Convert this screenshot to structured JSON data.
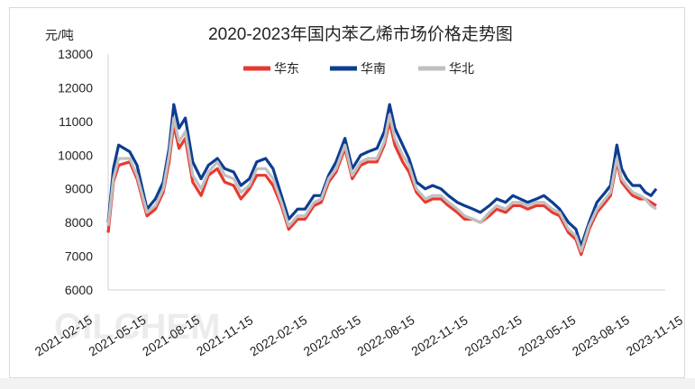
{
  "chart_data": {
    "type": "line",
    "title": "2020-2023年国内苯乙烯市场价格走势图",
    "ylabel": "元/吨",
    "xlabel": "",
    "ylim": [
      6000,
      13000
    ],
    "yticks": [
      "13000",
      "12000",
      "11000",
      "10000",
      "9000",
      "8000",
      "7000",
      "6000"
    ],
    "xticks": [
      "2021-02-15",
      "2021-05-15",
      "2021-08-15",
      "2021-11-15",
      "2022-02-15",
      "2022-05-15",
      "2022-08-15",
      "2022-11-15",
      "2023-02-15",
      "2023-05-15",
      "2023-08-15",
      "2023-11-15"
    ],
    "grid": false,
    "legend": "top",
    "watermark": "OILCHEM",
    "series": [
      {
        "name": "华东",
        "color": "#e8392f",
        "points": [
          [
            "2021-01-05",
            7700
          ],
          [
            "2021-01-15",
            9200
          ],
          [
            "2021-01-25",
            9700
          ],
          [
            "2021-02-15",
            9800
          ],
          [
            "2021-03-01",
            9300
          ],
          [
            "2021-03-20",
            8200
          ],
          [
            "2021-04-05",
            8400
          ],
          [
            "2021-04-20",
            8900
          ],
          [
            "2021-05-01",
            9800
          ],
          [
            "2021-05-10",
            10900
          ],
          [
            "2021-05-20",
            10200
          ],
          [
            "2021-06-01",
            10500
          ],
          [
            "2021-06-15",
            9200
          ],
          [
            "2021-07-01",
            8800
          ],
          [
            "2021-07-15",
            9400
          ],
          [
            "2021-08-01",
            9600
          ],
          [
            "2021-08-15",
            9200
          ],
          [
            "2021-09-01",
            9100
          ],
          [
            "2021-09-15",
            8700
          ],
          [
            "2021-10-01",
            9000
          ],
          [
            "2021-10-15",
            9400
          ],
          [
            "2021-11-01",
            9400
          ],
          [
            "2021-11-15",
            9100
          ],
          [
            "2021-12-01",
            8500
          ],
          [
            "2021-12-15",
            7800
          ],
          [
            "2022-01-01",
            8100
          ],
          [
            "2022-01-15",
            8100
          ],
          [
            "2022-02-01",
            8500
          ],
          [
            "2022-02-15",
            8600
          ],
          [
            "2022-03-01",
            9200
          ],
          [
            "2022-03-15",
            9500
          ],
          [
            "2022-04-01",
            10200
          ],
          [
            "2022-04-15",
            9300
          ],
          [
            "2022-05-01",
            9700
          ],
          [
            "2022-05-15",
            9800
          ],
          [
            "2022-06-01",
            9800
          ],
          [
            "2022-06-15",
            10300
          ],
          [
            "2022-06-25",
            11000
          ],
          [
            "2022-07-05",
            10300
          ],
          [
            "2022-07-20",
            9800
          ],
          [
            "2022-08-01",
            9500
          ],
          [
            "2022-08-15",
            8900
          ],
          [
            "2022-09-01",
            8600
          ],
          [
            "2022-09-15",
            8700
          ],
          [
            "2022-10-01",
            8700
          ],
          [
            "2022-10-15",
            8500
          ],
          [
            "2022-11-01",
            8300
          ],
          [
            "2022-11-15",
            8100
          ],
          [
            "2022-12-01",
            8100
          ],
          [
            "2022-12-15",
            8000
          ],
          [
            "2023-01-01",
            8200
          ],
          [
            "2023-01-15",
            8400
          ],
          [
            "2023-02-01",
            8300
          ],
          [
            "2023-02-15",
            8500
          ],
          [
            "2023-03-01",
            8500
          ],
          [
            "2023-03-15",
            8400
          ],
          [
            "2023-04-01",
            8500
          ],
          [
            "2023-04-15",
            8500
          ],
          [
            "2023-05-01",
            8300
          ],
          [
            "2023-05-15",
            8200
          ],
          [
            "2023-06-01",
            7700
          ],
          [
            "2023-06-15",
            7500
          ],
          [
            "2023-06-25",
            7050
          ],
          [
            "2023-07-10",
            7800
          ],
          [
            "2023-07-25",
            8300
          ],
          [
            "2023-08-10",
            8600
          ],
          [
            "2023-08-20",
            8800
          ],
          [
            "2023-09-01",
            9800
          ],
          [
            "2023-09-10",
            9200
          ],
          [
            "2023-09-20",
            9000
          ],
          [
            "2023-10-01",
            8800
          ],
          [
            "2023-10-15",
            8700
          ],
          [
            "2023-10-25",
            8700
          ],
          [
            "2023-11-05",
            8600
          ],
          [
            "2023-11-15",
            8500
          ]
        ]
      },
      {
        "name": "华南",
        "color": "#0d3d91",
        "points": [
          [
            "2021-01-05",
            8000
          ],
          [
            "2021-01-15",
            9600
          ],
          [
            "2021-01-25",
            10300
          ],
          [
            "2021-02-15",
            10100
          ],
          [
            "2021-03-01",
            9700
          ],
          [
            "2021-03-20",
            8400
          ],
          [
            "2021-04-05",
            8700
          ],
          [
            "2021-04-20",
            9200
          ],
          [
            "2021-05-01",
            10200
          ],
          [
            "2021-05-10",
            11500
          ],
          [
            "2021-05-20",
            10800
          ],
          [
            "2021-06-01",
            11100
          ],
          [
            "2021-06-15",
            9800
          ],
          [
            "2021-07-01",
            9300
          ],
          [
            "2021-07-15",
            9700
          ],
          [
            "2021-08-01",
            9900
          ],
          [
            "2021-08-15",
            9600
          ],
          [
            "2021-09-01",
            9500
          ],
          [
            "2021-09-15",
            9100
          ],
          [
            "2021-10-01",
            9300
          ],
          [
            "2021-10-15",
            9800
          ],
          [
            "2021-11-01",
            9900
          ],
          [
            "2021-11-15",
            9600
          ],
          [
            "2021-12-01",
            8800
          ],
          [
            "2021-12-15",
            8100
          ],
          [
            "2022-01-01",
            8400
          ],
          [
            "2022-01-15",
            8400
          ],
          [
            "2022-02-01",
            8800
          ],
          [
            "2022-02-15",
            8800
          ],
          [
            "2022-03-01",
            9400
          ],
          [
            "2022-03-15",
            9800
          ],
          [
            "2022-04-01",
            10500
          ],
          [
            "2022-04-15",
            9600
          ],
          [
            "2022-05-01",
            10000
          ],
          [
            "2022-05-15",
            10100
          ],
          [
            "2022-06-01",
            10200
          ],
          [
            "2022-06-15",
            10700
          ],
          [
            "2022-06-25",
            11500
          ],
          [
            "2022-07-05",
            10800
          ],
          [
            "2022-07-20",
            10300
          ],
          [
            "2022-08-01",
            9900
          ],
          [
            "2022-08-15",
            9200
          ],
          [
            "2022-09-01",
            9000
          ],
          [
            "2022-09-15",
            9100
          ],
          [
            "2022-10-01",
            9000
          ],
          [
            "2022-10-15",
            8800
          ],
          [
            "2022-11-01",
            8600
          ],
          [
            "2022-11-15",
            8500
          ],
          [
            "2022-12-01",
            8400
          ],
          [
            "2022-12-15",
            8300
          ],
          [
            "2023-01-01",
            8500
          ],
          [
            "2023-01-15",
            8700
          ],
          [
            "2023-02-01",
            8600
          ],
          [
            "2023-02-15",
            8800
          ],
          [
            "2023-03-01",
            8700
          ],
          [
            "2023-03-15",
            8600
          ],
          [
            "2023-04-01",
            8700
          ],
          [
            "2023-04-15",
            8800
          ],
          [
            "2023-05-01",
            8600
          ],
          [
            "2023-05-15",
            8400
          ],
          [
            "2023-06-01",
            8000
          ],
          [
            "2023-06-15",
            7800
          ],
          [
            "2023-06-25",
            7300
          ],
          [
            "2023-07-10",
            8000
          ],
          [
            "2023-07-25",
            8600
          ],
          [
            "2023-08-10",
            8900
          ],
          [
            "2023-08-20",
            9100
          ],
          [
            "2023-09-01",
            10300
          ],
          [
            "2023-09-10",
            9600
          ],
          [
            "2023-09-20",
            9300
          ],
          [
            "2023-10-01",
            9100
          ],
          [
            "2023-10-15",
            9100
          ],
          [
            "2023-10-25",
            8900
          ],
          [
            "2023-11-05",
            8800
          ],
          [
            "2023-11-15",
            9000
          ]
        ]
      },
      {
        "name": "华北",
        "color": "#c0c0c0",
        "points": [
          [
            "2021-01-05",
            7900
          ],
          [
            "2021-01-15",
            9300
          ],
          [
            "2021-01-25",
            9900
          ],
          [
            "2021-02-15",
            9900
          ],
          [
            "2021-03-01",
            9400
          ],
          [
            "2021-03-20",
            8300
          ],
          [
            "2021-04-05",
            8500
          ],
          [
            "2021-04-20",
            9000
          ],
          [
            "2021-05-01",
            10000
          ],
          [
            "2021-05-10",
            11100
          ],
          [
            "2021-05-20",
            10400
          ],
          [
            "2021-06-01",
            10700
          ],
          [
            "2021-06-15",
            9400
          ],
          [
            "2021-07-01",
            9000
          ],
          [
            "2021-07-15",
            9500
          ],
          [
            "2021-08-01",
            9800
          ],
          [
            "2021-08-15",
            9400
          ],
          [
            "2021-09-01",
            9300
          ],
          [
            "2021-09-15",
            8900
          ],
          [
            "2021-10-01",
            9100
          ],
          [
            "2021-10-15",
            9600
          ],
          [
            "2021-11-01",
            9600
          ],
          [
            "2021-11-15",
            9300
          ],
          [
            "2021-12-01",
            8600
          ],
          [
            "2021-12-15",
            7900
          ],
          [
            "2022-01-01",
            8200
          ],
          [
            "2022-01-15",
            8200
          ],
          [
            "2022-02-01",
            8600
          ],
          [
            "2022-02-15",
            8700
          ],
          [
            "2022-03-01",
            9300
          ],
          [
            "2022-03-15",
            9600
          ],
          [
            "2022-04-01",
            10300
          ],
          [
            "2022-04-15",
            9400
          ],
          [
            "2022-05-01",
            9800
          ],
          [
            "2022-05-15",
            9900
          ],
          [
            "2022-06-01",
            9900
          ],
          [
            "2022-06-15",
            10400
          ],
          [
            "2022-06-25",
            11200
          ],
          [
            "2022-07-05",
            10500
          ],
          [
            "2022-07-20",
            10000
          ],
          [
            "2022-08-01",
            9700
          ],
          [
            "2022-08-15",
            9000
          ],
          [
            "2022-09-01",
            8700
          ],
          [
            "2022-09-15",
            8800
          ],
          [
            "2022-10-01",
            8800
          ],
          [
            "2022-10-15",
            8600
          ],
          [
            "2022-11-01",
            8400
          ],
          [
            "2022-11-15",
            8200
          ],
          [
            "2022-12-01",
            8100
          ],
          [
            "2022-12-15",
            8000
          ],
          [
            "2023-01-01",
            8300
          ],
          [
            "2023-01-15",
            8500
          ],
          [
            "2023-02-01",
            8400
          ],
          [
            "2023-02-15",
            8600
          ],
          [
            "2023-03-01",
            8600
          ],
          [
            "2023-03-15",
            8500
          ],
          [
            "2023-04-01",
            8600
          ],
          [
            "2023-04-15",
            8600
          ],
          [
            "2023-05-01",
            8400
          ],
          [
            "2023-05-15",
            8300
          ],
          [
            "2023-06-01",
            7800
          ],
          [
            "2023-06-15",
            7600
          ],
          [
            "2023-06-25",
            7150
          ],
          [
            "2023-07-10",
            7900
          ],
          [
            "2023-07-25",
            8400
          ],
          [
            "2023-08-10",
            8700
          ],
          [
            "2023-08-20",
            8900
          ],
          [
            "2023-09-01",
            9900
          ],
          [
            "2023-09-10",
            9300
          ],
          [
            "2023-09-20",
            9100
          ],
          [
            "2023-10-01",
            8900
          ],
          [
            "2023-10-15",
            8800
          ],
          [
            "2023-10-25",
            8700
          ],
          [
            "2023-11-05",
            8500
          ],
          [
            "2023-11-15",
            8400
          ]
        ]
      }
    ]
  }
}
